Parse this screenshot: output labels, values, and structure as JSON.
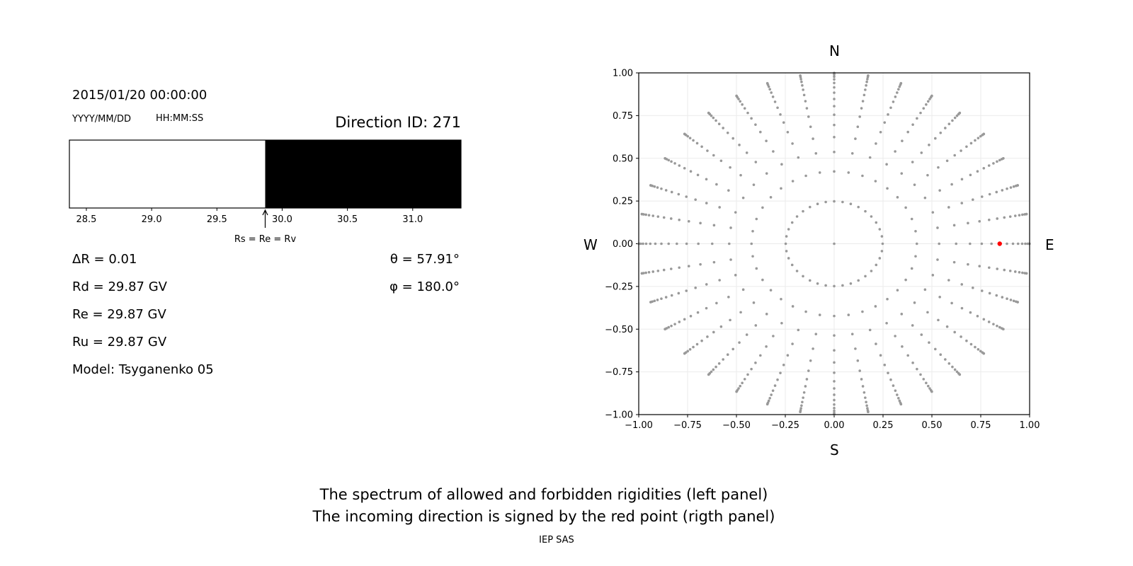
{
  "header": {
    "datetime": "2015/01/20 00:00:00",
    "date_format": "YYYY/MM/DD",
    "time_format": "HH:MM:SS",
    "direction_id": "Direction ID: 271"
  },
  "parameters": {
    "delta_r": "ΔR = 0.01",
    "rd": "Rd = 29.87 GV",
    "re": "Re = 29.87 GV",
    "ru": "Ru = 29.87 GV",
    "model": "Model: Tsyganenko 05",
    "theta": "θ = 57.91°",
    "phi": "φ = 180.0°"
  },
  "compass": {
    "north": "N",
    "south": "S",
    "west": "W",
    "east": "E"
  },
  "captions": {
    "line1": "The spectrum of allowed and forbidden rigidities (left panel)",
    "line2": "The incoming direction is signed by the red point (rigth panel)",
    "credit": "IEP SAS"
  },
  "chart_data": [
    {
      "type": "bar",
      "xlim": [
        28.37,
        31.37
      ],
      "xticks": [
        "28.5",
        "29.0",
        "29.5",
        "30.0",
        "30.5",
        "31.0"
      ],
      "xtick_values": [
        28.5,
        29.0,
        29.5,
        30.0,
        30.5,
        31.0
      ],
      "segments": [
        {
          "from": 28.37,
          "to": 29.87,
          "state": "allowed",
          "color": "#ffffff"
        },
        {
          "from": 29.87,
          "to": 31.37,
          "state": "forbidden",
          "color": "#000000"
        }
      ],
      "annotation": {
        "x": 29.87,
        "text": "Rs = Re = Rv"
      },
      "grid": false
    },
    {
      "type": "scatter",
      "xlim": [
        -1.0,
        1.0
      ],
      "ylim": [
        -1.0,
        1.0
      ],
      "xticks": [
        "−1.00",
        "−0.75",
        "−0.50",
        "−0.25",
        "0.00",
        "0.25",
        "0.50",
        "0.75",
        "1.00"
      ],
      "yticks": [
        "−1.00",
        "−0.75",
        "−0.50",
        "−0.25",
        "0.00",
        "0.25",
        "0.50",
        "0.75",
        "1.00"
      ],
      "tick_values": [
        -1.0,
        -0.75,
        -0.5,
        -0.25,
        0.0,
        0.25,
        0.5,
        0.75,
        1.0
      ],
      "grid": true,
      "point_color": "#999999",
      "highlight_color": "#ff0000",
      "spoke_azimuths_deg_step": 10,
      "spoke_radii": [
        0.248,
        0.423,
        0.537,
        0.624,
        0.695,
        0.755,
        0.805,
        0.847,
        0.884,
        0.915,
        0.941,
        0.962,
        0.978,
        0.99,
        0.998,
        0.9995
      ],
      "center_point": [
        0.0,
        0.0
      ],
      "highlight_point": {
        "x": 0.847,
        "y": 0.0
      }
    }
  ]
}
